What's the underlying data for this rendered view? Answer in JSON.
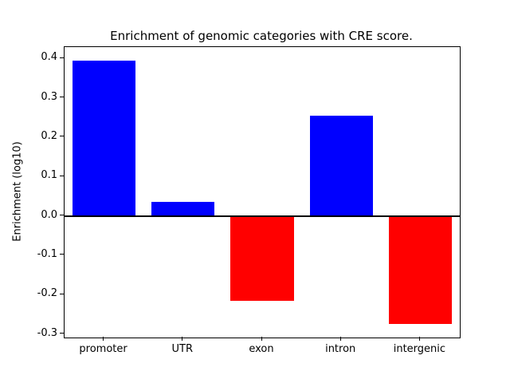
{
  "chart_data": {
    "type": "bar",
    "title": "Enrichment of genomic categories with CRE score.",
    "xlabel": "",
    "ylabel": "Enrichment (log10)",
    "categories": [
      "promoter",
      "UTR",
      "exon",
      "intron",
      "intergenic"
    ],
    "values": [
      0.395,
      0.035,
      -0.215,
      0.255,
      -0.275
    ],
    "bar_colors": [
      "#0000ff",
      "#0000ff",
      "#ff0000",
      "#0000ff",
      "#ff0000"
    ],
    "yticks": [
      -0.3,
      -0.2,
      -0.1,
      0.0,
      0.1,
      0.2,
      0.3,
      0.4
    ],
    "ylim": [
      -0.309,
      0.429
    ],
    "zero_line": true,
    "grid": false,
    "legend": "none",
    "background": "#ffffff",
    "axis_color": "#000000"
  }
}
